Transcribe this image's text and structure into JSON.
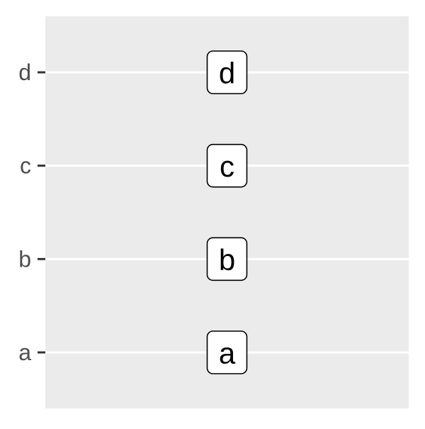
{
  "chart_data": {
    "type": "scatter",
    "title": "",
    "xlabel": "",
    "ylabel": "",
    "categories": [
      "a",
      "b",
      "c",
      "d"
    ],
    "points": [
      {
        "y": "a",
        "label": "a"
      },
      {
        "y": "b",
        "label": "b"
      },
      {
        "y": "c",
        "label": "c"
      },
      {
        "y": "d",
        "label": "d"
      }
    ],
    "x_axis_visible": false,
    "grid": true,
    "colors": {
      "panel": "#ebebeb",
      "gridline": "#ffffff",
      "tick": "#333333",
      "tick_label": "#4d4d4d",
      "label_fill": "#ffffff",
      "label_border": "#000000",
      "label_text": "#000000"
    }
  }
}
